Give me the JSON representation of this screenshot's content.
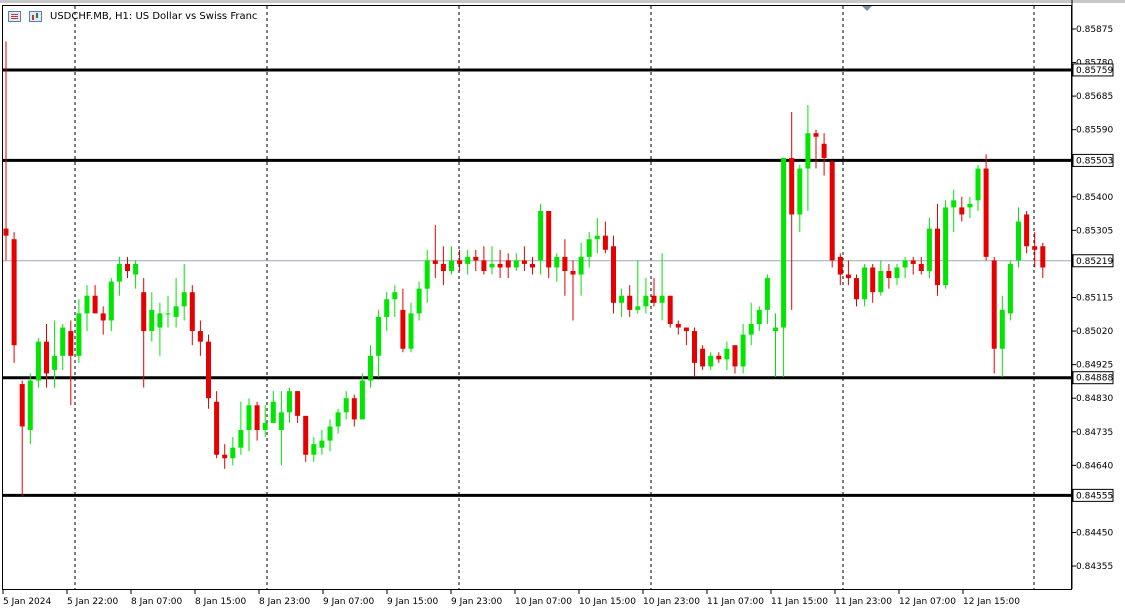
{
  "header": {
    "symbol_title": "USDCHF.MB, H1:  US Dollar vs Swiss Franc"
  },
  "icons": [
    "list-icon",
    "bar-chart-icon"
  ],
  "colors": {
    "bull": "#00e600",
    "bear": "#e60000",
    "background": "#ffffff",
    "grid": "#000000",
    "bid_line": "#9aa9b8",
    "level_line": "#000000"
  },
  "chart_data": {
    "type": "candlestick",
    "symbol": "USDCHF.MB",
    "timeframe": "H1",
    "description": "US Dollar vs Swiss Franc",
    "ylim": [
      0.8429,
      0.8594
    ],
    "y_ticks": [
      "0.85875",
      "0.85780",
      "0.85685",
      "0.85590",
      "0.85400",
      "0.85305",
      "0.85115",
      "0.85020",
      "0.84925",
      "0.84830",
      "0.84735",
      "0.84640",
      "0.84450",
      "0.84355"
    ],
    "x_ticks": [
      "5 Jan 2024",
      "5 Jan 22:00",
      "8 Jan 07:00",
      "8 Jan 15:00",
      "8 Jan 23:00",
      "9 Jan 07:00",
      "9 Jan 15:00",
      "9 Jan 23:00",
      "10 Jan 07:00",
      "10 Jan 15:00",
      "10 Jan 23:00",
      "11 Jan 07:00",
      "11 Jan 15:00",
      "11 Jan 23:00",
      "12 Jan 07:00",
      "12 Jan 15:00"
    ],
    "grid": "vertical dotted separators",
    "horizontal_levels": [
      {
        "value": 0.85759,
        "label": "0.85759"
      },
      {
        "value": 0.85503,
        "label": "0.85503"
      },
      {
        "value": 0.84888,
        "label": "0.84888"
      },
      {
        "value": 0.84555,
        "label": "0.84555"
      }
    ],
    "bid": {
      "value": 0.85219,
      "label": "0.85219"
    },
    "candles": [
      {
        "o": 0.8531,
        "h": 0.8584,
        "l": 0.8522,
        "c": 0.8529
      },
      {
        "o": 0.8528,
        "h": 0.853,
        "l": 0.8493,
        "c": 0.8498
      },
      {
        "o": 0.8487,
        "h": 0.8488,
        "l": 0.8455,
        "c": 0.8475
      },
      {
        "o": 0.8474,
        "h": 0.849,
        "l": 0.847,
        "c": 0.8488
      },
      {
        "o": 0.8488,
        "h": 0.85,
        "l": 0.8486,
        "c": 0.8499
      },
      {
        "o": 0.8499,
        "h": 0.8504,
        "l": 0.8486,
        "c": 0.849
      },
      {
        "o": 0.8491,
        "h": 0.8505,
        "l": 0.8486,
        "c": 0.8495
      },
      {
        "o": 0.8495,
        "h": 0.8504,
        "l": 0.8491,
        "c": 0.8503
      },
      {
        "o": 0.8502,
        "h": 0.8505,
        "l": 0.8481,
        "c": 0.8495
      },
      {
        "o": 0.8495,
        "h": 0.8511,
        "l": 0.8493,
        "c": 0.8507
      },
      {
        "o": 0.8507,
        "h": 0.8515,
        "l": 0.8502,
        "c": 0.8512
      },
      {
        "o": 0.8512,
        "h": 0.8515,
        "l": 0.8507,
        "c": 0.8507
      },
      {
        "o": 0.8507,
        "h": 0.8509,
        "l": 0.8501,
        "c": 0.8505
      },
      {
        "o": 0.8505,
        "h": 0.8517,
        "l": 0.8502,
        "c": 0.8516
      },
      {
        "o": 0.8516,
        "h": 0.8523,
        "l": 0.8512,
        "c": 0.8521
      },
      {
        "o": 0.8521,
        "h": 0.8523,
        "l": 0.8517,
        "c": 0.8519
      },
      {
        "o": 0.8518,
        "h": 0.8522,
        "l": 0.8514,
        "c": 0.8521
      },
      {
        "o": 0.8513,
        "h": 0.8517,
        "l": 0.8486,
        "c": 0.8502
      },
      {
        "o": 0.8502,
        "h": 0.8513,
        "l": 0.8499,
        "c": 0.8508
      },
      {
        "o": 0.8503,
        "h": 0.851,
        "l": 0.8495,
        "c": 0.8507
      },
      {
        "o": 0.8507,
        "h": 0.8512,
        "l": 0.8503,
        "c": 0.8507
      },
      {
        "o": 0.8506,
        "h": 0.8517,
        "l": 0.8503,
        "c": 0.8509
      },
      {
        "o": 0.8509,
        "h": 0.8521,
        "l": 0.8505,
        "c": 0.8513
      },
      {
        "o": 0.8513,
        "h": 0.8515,
        "l": 0.8498,
        "c": 0.8502
      },
      {
        "o": 0.8502,
        "h": 0.8505,
        "l": 0.8495,
        "c": 0.8499
      },
      {
        "o": 0.8499,
        "h": 0.8501,
        "l": 0.848,
        "c": 0.8483
      },
      {
        "o": 0.8482,
        "h": 0.8485,
        "l": 0.8466,
        "c": 0.8467
      },
      {
        "o": 0.8467,
        "h": 0.847,
        "l": 0.8463,
        "c": 0.8466
      },
      {
        "o": 0.8466,
        "h": 0.8472,
        "l": 0.8464,
        "c": 0.8469
      },
      {
        "o": 0.8469,
        "h": 0.8482,
        "l": 0.8467,
        "c": 0.8474
      },
      {
        "o": 0.8474,
        "h": 0.8483,
        "l": 0.8468,
        "c": 0.8481
      },
      {
        "o": 0.8481,
        "h": 0.8482,
        "l": 0.8471,
        "c": 0.8474
      },
      {
        "o": 0.8474,
        "h": 0.8481,
        "l": 0.8472,
        "c": 0.8476
      },
      {
        "o": 0.8476,
        "h": 0.8485,
        "l": 0.8476,
        "c": 0.8482
      },
      {
        "o": 0.8474,
        "h": 0.8485,
        "l": 0.8464,
        "c": 0.8479
      },
      {
        "o": 0.8479,
        "h": 0.8486,
        "l": 0.8476,
        "c": 0.8485
      },
      {
        "o": 0.8485,
        "h": 0.8485,
        "l": 0.8476,
        "c": 0.8478
      },
      {
        "o": 0.8478,
        "h": 0.8478,
        "l": 0.8465,
        "c": 0.8467
      },
      {
        "o": 0.8467,
        "h": 0.8472,
        "l": 0.8465,
        "c": 0.847
      },
      {
        "o": 0.8469,
        "h": 0.8474,
        "l": 0.8467,
        "c": 0.8471
      },
      {
        "o": 0.8471,
        "h": 0.8477,
        "l": 0.8468,
        "c": 0.8475
      },
      {
        "o": 0.8475,
        "h": 0.848,
        "l": 0.8473,
        "c": 0.8479
      },
      {
        "o": 0.8479,
        "h": 0.8485,
        "l": 0.8477,
        "c": 0.8483
      },
      {
        "o": 0.8483,
        "h": 0.8484,
        "l": 0.8475,
        "c": 0.8477
      },
      {
        "o": 0.8477,
        "h": 0.849,
        "l": 0.8477,
        "c": 0.8488
      },
      {
        "o": 0.8488,
        "h": 0.8498,
        "l": 0.8486,
        "c": 0.8495
      },
      {
        "o": 0.8495,
        "h": 0.8508,
        "l": 0.8489,
        "c": 0.8506
      },
      {
        "o": 0.8506,
        "h": 0.8513,
        "l": 0.8502,
        "c": 0.8511
      },
      {
        "o": 0.8511,
        "h": 0.8515,
        "l": 0.8506,
        "c": 0.8513
      },
      {
        "o": 0.8508,
        "h": 0.8514,
        "l": 0.8496,
        "c": 0.8497
      },
      {
        "o": 0.8497,
        "h": 0.851,
        "l": 0.8496,
        "c": 0.8507
      },
      {
        "o": 0.8507,
        "h": 0.8516,
        "l": 0.8505,
        "c": 0.8514
      },
      {
        "o": 0.8514,
        "h": 0.8525,
        "l": 0.851,
        "c": 0.8522
      },
      {
        "o": 0.8522,
        "h": 0.8532,
        "l": 0.8517,
        "c": 0.8521
      },
      {
        "o": 0.8521,
        "h": 0.8526,
        "l": 0.8515,
        "c": 0.8519
      },
      {
        "o": 0.8519,
        "h": 0.8526,
        "l": 0.8518,
        "c": 0.8522
      },
      {
        "o": 0.8522,
        "h": 0.8525,
        "l": 0.8519,
        "c": 0.8521
      },
      {
        "o": 0.8521,
        "h": 0.8525,
        "l": 0.8518,
        "c": 0.8523
      },
      {
        "o": 0.8523,
        "h": 0.8525,
        "l": 0.8519,
        "c": 0.8522
      },
      {
        "o": 0.8522,
        "h": 0.8526,
        "l": 0.8518,
        "c": 0.8519
      },
      {
        "o": 0.852,
        "h": 0.8526,
        "l": 0.8518,
        "c": 0.8521
      },
      {
        "o": 0.8521,
        "h": 0.8525,
        "l": 0.8517,
        "c": 0.852
      },
      {
        "o": 0.8522,
        "h": 0.8524,
        "l": 0.8517,
        "c": 0.852
      },
      {
        "o": 0.852,
        "h": 0.8524,
        "l": 0.8519,
        "c": 0.8522
      },
      {
        "o": 0.8522,
        "h": 0.8526,
        "l": 0.8519,
        "c": 0.8521
      },
      {
        "o": 0.8521,
        "h": 0.8523,
        "l": 0.8518,
        "c": 0.852
      },
      {
        "o": 0.8522,
        "h": 0.8538,
        "l": 0.8518,
        "c": 0.8536
      },
      {
        "o": 0.8536,
        "h": 0.8536,
        "l": 0.8517,
        "c": 0.852
      },
      {
        "o": 0.852,
        "h": 0.8524,
        "l": 0.8516,
        "c": 0.8523
      },
      {
        "o": 0.8523,
        "h": 0.8528,
        "l": 0.8512,
        "c": 0.8519
      },
      {
        "o": 0.8519,
        "h": 0.8522,
        "l": 0.8505,
        "c": 0.8518
      },
      {
        "o": 0.8518,
        "h": 0.8527,
        "l": 0.8512,
        "c": 0.8523
      },
      {
        "o": 0.8523,
        "h": 0.853,
        "l": 0.852,
        "c": 0.8528
      },
      {
        "o": 0.8528,
        "h": 0.8534,
        "l": 0.8524,
        "c": 0.8529
      },
      {
        "o": 0.8529,
        "h": 0.8533,
        "l": 0.8524,
        "c": 0.8525
      },
      {
        "o": 0.8526,
        "h": 0.8529,
        "l": 0.8507,
        "c": 0.851
      },
      {
        "o": 0.851,
        "h": 0.8514,
        "l": 0.8506,
        "c": 0.8512
      },
      {
        "o": 0.8512,
        "h": 0.8515,
        "l": 0.8506,
        "c": 0.8508
      },
      {
        "o": 0.8508,
        "h": 0.8522,
        "l": 0.8507,
        "c": 0.8509
      },
      {
        "o": 0.8509,
        "h": 0.8517,
        "l": 0.8507,
        "c": 0.8512
      },
      {
        "o": 0.8512,
        "h": 0.8517,
        "l": 0.8509,
        "c": 0.851
      },
      {
        "o": 0.851,
        "h": 0.8524,
        "l": 0.8505,
        "c": 0.8512
      },
      {
        "o": 0.8512,
        "h": 0.8511,
        "l": 0.8503,
        "c": 0.8504
      },
      {
        "o": 0.8504,
        "h": 0.8505,
        "l": 0.8501,
        "c": 0.8503
      },
      {
        "o": 0.8503,
        "h": 0.8503,
        "l": 0.8498,
        "c": 0.8502
      },
      {
        "o": 0.8502,
        "h": 0.8503,
        "l": 0.8489,
        "c": 0.8493
      },
      {
        "o": 0.8497,
        "h": 0.8498,
        "l": 0.8491,
        "c": 0.8492
      },
      {
        "o": 0.8492,
        "h": 0.8496,
        "l": 0.8491,
        "c": 0.8495
      },
      {
        "o": 0.8495,
        "h": 0.8496,
        "l": 0.8493,
        "c": 0.8494
      },
      {
        "o": 0.8494,
        "h": 0.8499,
        "l": 0.8491,
        "c": 0.8497
      },
      {
        "o": 0.8498,
        "h": 0.8498,
        "l": 0.849,
        "c": 0.8492
      },
      {
        "o": 0.8492,
        "h": 0.8504,
        "l": 0.849,
        "c": 0.8501
      },
      {
        "o": 0.8501,
        "h": 0.851,
        "l": 0.8498,
        "c": 0.8504
      },
      {
        "o": 0.8504,
        "h": 0.8509,
        "l": 0.8502,
        "c": 0.8508
      },
      {
        "o": 0.8508,
        "h": 0.8518,
        "l": 0.8504,
        "c": 0.8517
      },
      {
        "o": 0.8502,
        "h": 0.8507,
        "l": 0.8489,
        "c": 0.8503
      },
      {
        "o": 0.8503,
        "h": 0.8551,
        "l": 0.8489,
        "c": 0.8551
      },
      {
        "o": 0.8551,
        "h": 0.8564,
        "l": 0.8508,
        "c": 0.8535
      },
      {
        "o": 0.8535,
        "h": 0.8549,
        "l": 0.853,
        "c": 0.8548
      },
      {
        "o": 0.8548,
        "h": 0.8566,
        "l": 0.8536,
        "c": 0.8558
      },
      {
        "o": 0.8558,
        "h": 0.8559,
        "l": 0.8548,
        "c": 0.8557
      },
      {
        "o": 0.8555,
        "h": 0.8558,
        "l": 0.8546,
        "c": 0.8551
      },
      {
        "o": 0.855,
        "h": 0.855,
        "l": 0.852,
        "c": 0.8522
      },
      {
        "o": 0.8523,
        "h": 0.8524,
        "l": 0.8515,
        "c": 0.8518
      },
      {
        "o": 0.8518,
        "h": 0.8522,
        "l": 0.8515,
        "c": 0.8517
      },
      {
        "o": 0.8517,
        "h": 0.8518,
        "l": 0.8509,
        "c": 0.8511
      },
      {
        "o": 0.8511,
        "h": 0.8521,
        "l": 0.8509,
        "c": 0.852
      },
      {
        "o": 0.852,
        "h": 0.8521,
        "l": 0.851,
        "c": 0.8513
      },
      {
        "o": 0.8513,
        "h": 0.8522,
        "l": 0.8512,
        "c": 0.8519
      },
      {
        "o": 0.8519,
        "h": 0.8521,
        "l": 0.8514,
        "c": 0.8517
      },
      {
        "o": 0.8517,
        "h": 0.8521,
        "l": 0.8515,
        "c": 0.852
      },
      {
        "o": 0.852,
        "h": 0.8523,
        "l": 0.8517,
        "c": 0.8522
      },
      {
        "o": 0.8522,
        "h": 0.8523,
        "l": 0.8518,
        "c": 0.8521
      },
      {
        "o": 0.8521,
        "h": 0.8523,
        "l": 0.8518,
        "c": 0.8519
      },
      {
        "o": 0.8519,
        "h": 0.8534,
        "l": 0.8517,
        "c": 0.8531
      },
      {
        "o": 0.8531,
        "h": 0.8538,
        "l": 0.8512,
        "c": 0.8515
      },
      {
        "o": 0.8515,
        "h": 0.8539,
        "l": 0.8514,
        "c": 0.8537
      },
      {
        "o": 0.8537,
        "h": 0.8542,
        "l": 0.853,
        "c": 0.8539
      },
      {
        "o": 0.8537,
        "h": 0.854,
        "l": 0.8533,
        "c": 0.8535
      },
      {
        "o": 0.8537,
        "h": 0.854,
        "l": 0.8534,
        "c": 0.8538
      },
      {
        "o": 0.8539,
        "h": 0.8549,
        "l": 0.8536,
        "c": 0.8548
      },
      {
        "o": 0.8548,
        "h": 0.8552,
        "l": 0.8522,
        "c": 0.8523
      },
      {
        "o": 0.8522,
        "h": 0.8523,
        "l": 0.849,
        "c": 0.8497
      },
      {
        "o": 0.8497,
        "h": 0.8512,
        "l": 0.8489,
        "c": 0.8508
      },
      {
        "o": 0.8507,
        "h": 0.8522,
        "l": 0.8505,
        "c": 0.8521
      },
      {
        "o": 0.8522,
        "h": 0.8537,
        "l": 0.852,
        "c": 0.8533
      },
      {
        "o": 0.8535,
        "h": 0.8536,
        "l": 0.8524,
        "c": 0.8526
      },
      {
        "o": 0.8526,
        "h": 0.853,
        "l": 0.852,
        "c": 0.8525
      },
      {
        "o": 0.8526,
        "h": 0.8527,
        "l": 0.8517,
        "c": 0.852
      }
    ]
  }
}
